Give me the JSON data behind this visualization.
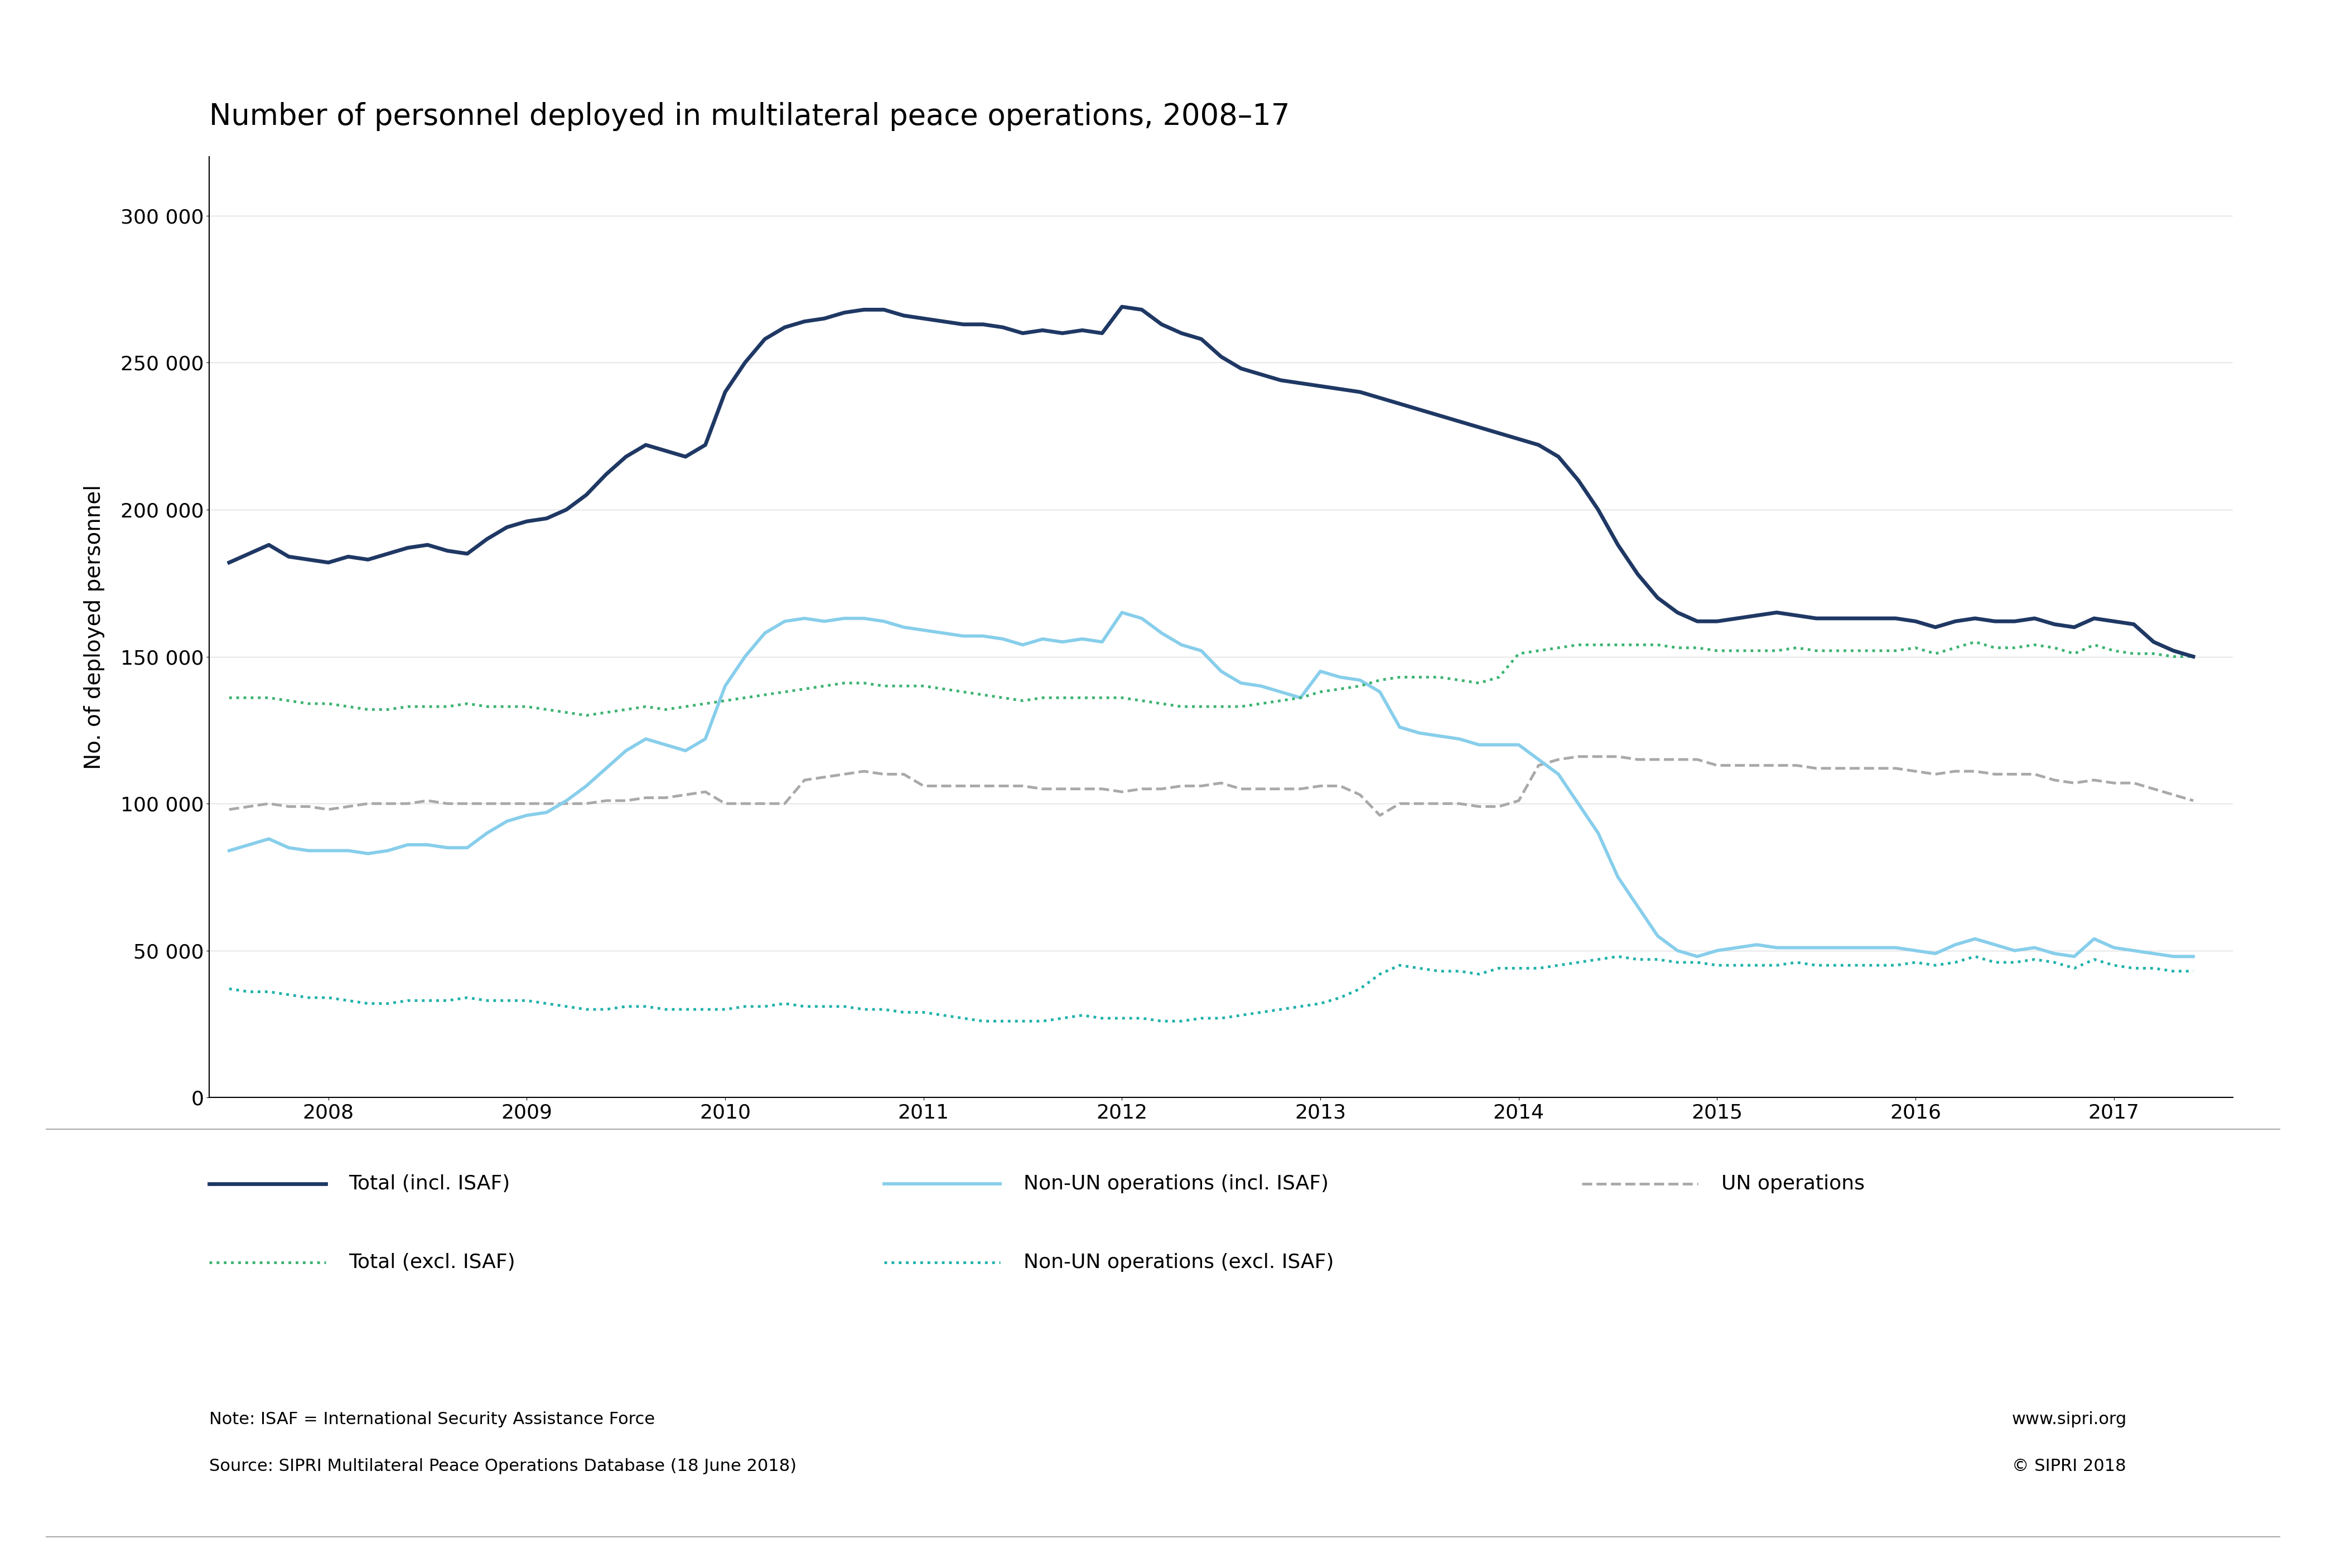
{
  "title": "Number of personnel deployed in multilateral peace operations, 2008–17",
  "ylabel": "No. of deployed personnel",
  "background_color": "#ffffff",
  "title_fontsize": 38,
  "label_fontsize": 28,
  "tick_fontsize": 26,
  "legend_fontsize": 26,
  "note_fontsize": 22,
  "ylim": [
    0,
    320000
  ],
  "yticks": [
    0,
    50000,
    100000,
    150000,
    200000,
    250000,
    300000
  ],
  "colors": {
    "total_incl": "#1f3864",
    "total_excl": "#3cb371",
    "non_un_incl": "#87ceeb",
    "non_un_excl": "#20b2aa",
    "un_ops": "#a9a9a9"
  },
  "series": {
    "total_incl": {
      "x": [
        2007.5,
        2007.6,
        2007.7,
        2007.8,
        2007.9,
        2008.0,
        2008.1,
        2008.2,
        2008.3,
        2008.4,
        2008.5,
        2008.6,
        2008.7,
        2008.8,
        2008.9,
        2009.0,
        2009.1,
        2009.2,
        2009.3,
        2009.4,
        2009.5,
        2009.6,
        2009.7,
        2009.8,
        2009.9,
        2010.0,
        2010.1,
        2010.2,
        2010.3,
        2010.4,
        2010.5,
        2010.6,
        2010.7,
        2010.8,
        2010.9,
        2011.0,
        2011.1,
        2011.2,
        2011.3,
        2011.4,
        2011.5,
        2011.6,
        2011.7,
        2011.8,
        2011.9,
        2012.0,
        2012.1,
        2012.2,
        2012.3,
        2012.4,
        2012.5,
        2012.6,
        2012.7,
        2012.8,
        2012.9,
        2013.0,
        2013.1,
        2013.2,
        2013.3,
        2013.4,
        2013.5,
        2013.6,
        2013.7,
        2013.8,
        2013.9,
        2014.0,
        2014.1,
        2014.2,
        2014.3,
        2014.4,
        2014.5,
        2014.6,
        2014.7,
        2014.8,
        2014.9,
        2015.0,
        2015.1,
        2015.2,
        2015.3,
        2015.4,
        2015.5,
        2015.6,
        2015.7,
        2015.8,
        2015.9,
        2016.0,
        2016.1,
        2016.2,
        2016.3,
        2016.4,
        2016.5,
        2016.6,
        2016.7,
        2016.8,
        2016.9,
        2017.0,
        2017.1,
        2017.2,
        2017.3,
        2017.4
      ],
      "y": [
        182000,
        185000,
        188000,
        184000,
        183000,
        182000,
        184000,
        183000,
        185000,
        187000,
        188000,
        186000,
        185000,
        190000,
        194000,
        196000,
        197000,
        200000,
        205000,
        212000,
        218000,
        222000,
        220000,
        218000,
        222000,
        240000,
        250000,
        258000,
        262000,
        264000,
        265000,
        267000,
        268000,
        268000,
        266000,
        265000,
        264000,
        263000,
        263000,
        262000,
        260000,
        261000,
        260000,
        261000,
        260000,
        269000,
        268000,
        263000,
        260000,
        258000,
        252000,
        248000,
        246000,
        244000,
        243000,
        242000,
        241000,
        240000,
        238000,
        236000,
        234000,
        232000,
        230000,
        228000,
        226000,
        224000,
        222000,
        218000,
        210000,
        200000,
        188000,
        178000,
        170000,
        165000,
        162000,
        162000,
        163000,
        164000,
        165000,
        164000,
        163000,
        163000,
        163000,
        163000,
        163000,
        162000,
        160000,
        162000,
        163000,
        162000,
        162000,
        163000,
        161000,
        160000,
        163000,
        162000,
        161000,
        155000,
        152000,
        150000
      ]
    },
    "total_excl": {
      "x": [
        2007.5,
        2007.6,
        2007.7,
        2007.8,
        2007.9,
        2008.0,
        2008.1,
        2008.2,
        2008.3,
        2008.4,
        2008.5,
        2008.6,
        2008.7,
        2008.8,
        2008.9,
        2009.0,
        2009.1,
        2009.2,
        2009.3,
        2009.4,
        2009.5,
        2009.6,
        2009.7,
        2009.8,
        2009.9,
        2010.0,
        2010.1,
        2010.2,
        2010.3,
        2010.4,
        2010.5,
        2010.6,
        2010.7,
        2010.8,
        2010.9,
        2011.0,
        2011.1,
        2011.2,
        2011.3,
        2011.4,
        2011.5,
        2011.6,
        2011.7,
        2011.8,
        2011.9,
        2012.0,
        2012.1,
        2012.2,
        2012.3,
        2012.4,
        2012.5,
        2012.6,
        2012.7,
        2012.8,
        2012.9,
        2013.0,
        2013.1,
        2013.2,
        2013.3,
        2013.4,
        2013.5,
        2013.6,
        2013.7,
        2013.8,
        2013.9,
        2014.0,
        2014.1,
        2014.2,
        2014.3,
        2014.4,
        2014.5,
        2014.6,
        2014.7,
        2014.8,
        2014.9,
        2015.0,
        2015.1,
        2015.2,
        2015.3,
        2015.4,
        2015.5,
        2015.6,
        2015.7,
        2015.8,
        2015.9,
        2016.0,
        2016.1,
        2016.2,
        2016.3,
        2016.4,
        2016.5,
        2016.6,
        2016.7,
        2016.8,
        2016.9,
        2017.0,
        2017.1,
        2017.2,
        2017.3,
        2017.4
      ],
      "y": [
        136000,
        136000,
        136000,
        135000,
        134000,
        134000,
        133000,
        132000,
        132000,
        133000,
        133000,
        133000,
        134000,
        133000,
        133000,
        133000,
        132000,
        131000,
        130000,
        131000,
        132000,
        133000,
        132000,
        133000,
        134000,
        135000,
        136000,
        137000,
        138000,
        139000,
        140000,
        141000,
        141000,
        140000,
        140000,
        140000,
        139000,
        138000,
        137000,
        136000,
        135000,
        136000,
        136000,
        136000,
        136000,
        136000,
        135000,
        134000,
        133000,
        133000,
        133000,
        133000,
        134000,
        135000,
        136000,
        138000,
        139000,
        140000,
        142000,
        143000,
        143000,
        143000,
        142000,
        141000,
        143000,
        151000,
        152000,
        153000,
        154000,
        154000,
        154000,
        154000,
        154000,
        153000,
        153000,
        152000,
        152000,
        152000,
        152000,
        153000,
        152000,
        152000,
        152000,
        152000,
        152000,
        153000,
        151000,
        153000,
        155000,
        153000,
        153000,
        154000,
        153000,
        151000,
        154000,
        152000,
        151000,
        151000,
        150000,
        150000
      ]
    },
    "non_un_incl": {
      "x": [
        2007.5,
        2007.6,
        2007.7,
        2007.8,
        2007.9,
        2008.0,
        2008.1,
        2008.2,
        2008.3,
        2008.4,
        2008.5,
        2008.6,
        2008.7,
        2008.8,
        2008.9,
        2009.0,
        2009.1,
        2009.2,
        2009.3,
        2009.4,
        2009.5,
        2009.6,
        2009.7,
        2009.8,
        2009.9,
        2010.0,
        2010.1,
        2010.2,
        2010.3,
        2010.4,
        2010.5,
        2010.6,
        2010.7,
        2010.8,
        2010.9,
        2011.0,
        2011.1,
        2011.2,
        2011.3,
        2011.4,
        2011.5,
        2011.6,
        2011.7,
        2011.8,
        2011.9,
        2012.0,
        2012.1,
        2012.2,
        2012.3,
        2012.4,
        2012.5,
        2012.6,
        2012.7,
        2012.8,
        2012.9,
        2013.0,
        2013.1,
        2013.2,
        2013.3,
        2013.4,
        2013.5,
        2013.6,
        2013.7,
        2013.8,
        2013.9,
        2014.0,
        2014.1,
        2014.2,
        2014.3,
        2014.4,
        2014.5,
        2014.6,
        2014.7,
        2014.8,
        2014.9,
        2015.0,
        2015.1,
        2015.2,
        2015.3,
        2015.4,
        2015.5,
        2015.6,
        2015.7,
        2015.8,
        2015.9,
        2016.0,
        2016.1,
        2016.2,
        2016.3,
        2016.4,
        2016.5,
        2016.6,
        2016.7,
        2016.8,
        2016.9,
        2017.0,
        2017.1,
        2017.2,
        2017.3,
        2017.4
      ],
      "y": [
        84000,
        86000,
        88000,
        85000,
        84000,
        84000,
        84000,
        83000,
        84000,
        86000,
        86000,
        85000,
        85000,
        90000,
        94000,
        96000,
        97000,
        101000,
        106000,
        112000,
        118000,
        122000,
        120000,
        118000,
        122000,
        140000,
        150000,
        158000,
        162000,
        163000,
        162000,
        163000,
        163000,
        162000,
        160000,
        159000,
        158000,
        157000,
        157000,
        156000,
        154000,
        156000,
        155000,
        156000,
        155000,
        165000,
        163000,
        158000,
        154000,
        152000,
        145000,
        141000,
        140000,
        138000,
        136000,
        145000,
        143000,
        142000,
        138000,
        126000,
        124000,
        123000,
        122000,
        120000,
        120000,
        120000,
        115000,
        110000,
        100000,
        90000,
        75000,
        65000,
        55000,
        50000,
        48000,
        50000,
        51000,
        52000,
        51000,
        51000,
        51000,
        51000,
        51000,
        51000,
        51000,
        50000,
        49000,
        52000,
        54000,
        52000,
        50000,
        51000,
        49000,
        48000,
        54000,
        51000,
        50000,
        49000,
        48000,
        48000
      ]
    },
    "non_un_excl": {
      "x": [
        2007.5,
        2007.6,
        2007.7,
        2007.8,
        2007.9,
        2008.0,
        2008.1,
        2008.2,
        2008.3,
        2008.4,
        2008.5,
        2008.6,
        2008.7,
        2008.8,
        2008.9,
        2009.0,
        2009.1,
        2009.2,
        2009.3,
        2009.4,
        2009.5,
        2009.6,
        2009.7,
        2009.8,
        2009.9,
        2010.0,
        2010.1,
        2010.2,
        2010.3,
        2010.4,
        2010.5,
        2010.6,
        2010.7,
        2010.8,
        2010.9,
        2011.0,
        2011.1,
        2011.2,
        2011.3,
        2011.4,
        2011.5,
        2011.6,
        2011.7,
        2011.8,
        2011.9,
        2012.0,
        2012.1,
        2012.2,
        2012.3,
        2012.4,
        2012.5,
        2012.6,
        2012.7,
        2012.8,
        2012.9,
        2013.0,
        2013.1,
        2013.2,
        2013.3,
        2013.4,
        2013.5,
        2013.6,
        2013.7,
        2013.8,
        2013.9,
        2014.0,
        2014.1,
        2014.2,
        2014.3,
        2014.4,
        2014.5,
        2014.6,
        2014.7,
        2014.8,
        2014.9,
        2015.0,
        2015.1,
        2015.2,
        2015.3,
        2015.4,
        2015.5,
        2015.6,
        2015.7,
        2015.8,
        2015.9,
        2016.0,
        2016.1,
        2016.2,
        2016.3,
        2016.4,
        2016.5,
        2016.6,
        2016.7,
        2016.8,
        2016.9,
        2017.0,
        2017.1,
        2017.2,
        2017.3,
        2017.4
      ],
      "y": [
        37000,
        36000,
        36000,
        35000,
        34000,
        34000,
        33000,
        32000,
        32000,
        33000,
        33000,
        33000,
        34000,
        33000,
        33000,
        33000,
        32000,
        31000,
        30000,
        30000,
        31000,
        31000,
        30000,
        30000,
        30000,
        30000,
        31000,
        31000,
        32000,
        31000,
        31000,
        31000,
        30000,
        30000,
        29000,
        29000,
        28000,
        27000,
        26000,
        26000,
        26000,
        26000,
        27000,
        28000,
        27000,
        27000,
        27000,
        26000,
        26000,
        27000,
        27000,
        28000,
        29000,
        30000,
        31000,
        32000,
        34000,
        37000,
        42000,
        45000,
        44000,
        43000,
        43000,
        42000,
        44000,
        44000,
        44000,
        45000,
        46000,
        47000,
        48000,
        47000,
        47000,
        46000,
        46000,
        45000,
        45000,
        45000,
        45000,
        46000,
        45000,
        45000,
        45000,
        45000,
        45000,
        46000,
        45000,
        46000,
        48000,
        46000,
        46000,
        47000,
        46000,
        44000,
        47000,
        45000,
        44000,
        44000,
        43000,
        43000
      ]
    },
    "un_ops": {
      "x": [
        2007.5,
        2007.6,
        2007.7,
        2007.8,
        2007.9,
        2008.0,
        2008.1,
        2008.2,
        2008.3,
        2008.4,
        2008.5,
        2008.6,
        2008.7,
        2008.8,
        2008.9,
        2009.0,
        2009.1,
        2009.2,
        2009.3,
        2009.4,
        2009.5,
        2009.6,
        2009.7,
        2009.8,
        2009.9,
        2010.0,
        2010.1,
        2010.2,
        2010.3,
        2010.4,
        2010.5,
        2010.6,
        2010.7,
        2010.8,
        2010.9,
        2011.0,
        2011.1,
        2011.2,
        2011.3,
        2011.4,
        2011.5,
        2011.6,
        2011.7,
        2011.8,
        2011.9,
        2012.0,
        2012.1,
        2012.2,
        2012.3,
        2012.4,
        2012.5,
        2012.6,
        2012.7,
        2012.8,
        2012.9,
        2013.0,
        2013.1,
        2013.2,
        2013.3,
        2013.4,
        2013.5,
        2013.6,
        2013.7,
        2013.8,
        2013.9,
        2014.0,
        2014.1,
        2014.2,
        2014.3,
        2014.4,
        2014.5,
        2014.6,
        2014.7,
        2014.8,
        2014.9,
        2015.0,
        2015.1,
        2015.2,
        2015.3,
        2015.4,
        2015.5,
        2015.6,
        2015.7,
        2015.8,
        2015.9,
        2016.0,
        2016.1,
        2016.2,
        2016.3,
        2016.4,
        2016.5,
        2016.6,
        2016.7,
        2016.8,
        2016.9,
        2017.0,
        2017.1,
        2017.2,
        2017.3,
        2017.4
      ],
      "y": [
        98000,
        99000,
        100000,
        99000,
        99000,
        98000,
        99000,
        100000,
        100000,
        100000,
        101000,
        100000,
        100000,
        100000,
        100000,
        100000,
        100000,
        100000,
        100000,
        101000,
        101000,
        102000,
        102000,
        103000,
        104000,
        100000,
        100000,
        100000,
        100000,
        108000,
        109000,
        110000,
        111000,
        110000,
        110000,
        106000,
        106000,
        106000,
        106000,
        106000,
        106000,
        105000,
        105000,
        105000,
        105000,
        104000,
        105000,
        105000,
        106000,
        106000,
        107000,
        105000,
        105000,
        105000,
        105000,
        106000,
        106000,
        103000,
        96000,
        100000,
        100000,
        100000,
        100000,
        99000,
        99000,
        101000,
        113000,
        115000,
        116000,
        116000,
        116000,
        115000,
        115000,
        115000,
        115000,
        113000,
        113000,
        113000,
        113000,
        113000,
        112000,
        112000,
        112000,
        112000,
        112000,
        111000,
        110000,
        111000,
        111000,
        110000,
        110000,
        110000,
        108000,
        107000,
        108000,
        107000,
        107000,
        105000,
        103000,
        101000
      ]
    }
  },
  "legend": {
    "total_incl_label": "Total (incl. ISAF)",
    "total_excl_label": "Total (excl. ISAF)",
    "non_un_incl_label": "Non-UN operations (incl. ISAF)",
    "non_un_excl_label": "Non-UN operations (excl. ISAF)",
    "un_ops_label": "UN operations"
  },
  "note_line1": "Note: ISAF = International Security Assistance Force",
  "note_line2": "Source: SIPRI Multilateral Peace Operations Database (18 June 2018)",
  "website": "www.sipri.org",
  "copyright": "© SIPRI 2018",
  "sipri_logo_color": "#cc2244",
  "divider_color": "#aaaaaa"
}
